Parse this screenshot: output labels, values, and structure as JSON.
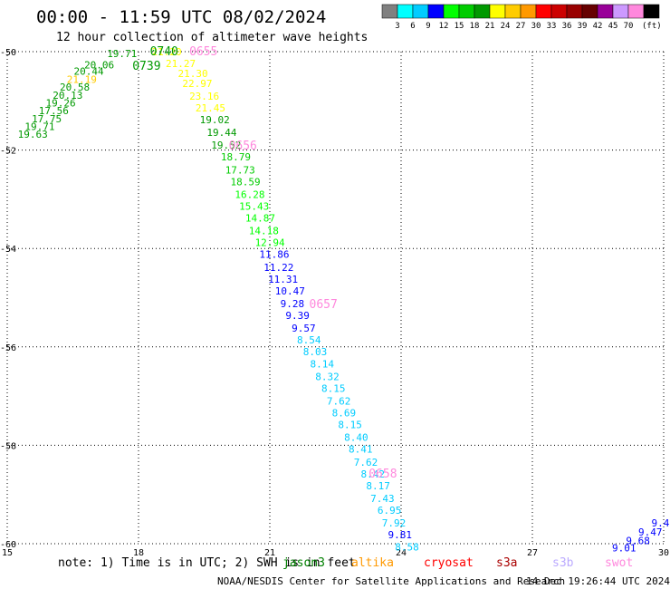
{
  "title": "00:00 - 11:59 UTC 08/02/2024",
  "subtitle": "12 hour collection of altimeter wave heights",
  "footer_left": "NOAA/NESDIS Center for Satellite Applications and Research",
  "footer_right": "14 Dec 19:26:44 UTC 2024",
  "note": "note: 1) Time is in UTC; 2) SWH is in feet",
  "satellites": [
    {
      "name": "jason3",
      "color": "#008000"
    },
    {
      "name": "altika",
      "color": "#ff9900"
    },
    {
      "name": "cryosat",
      "color": "#ff0000"
    },
    {
      "name": "s3a",
      "color": "#aa0000"
    },
    {
      "name": "s3b",
      "color": "#bbaaff"
    },
    {
      "name": "swot",
      "color": "#ff88dd"
    }
  ],
  "colorbar": {
    "unit": "(ft)",
    "colors": [
      "#808080",
      "#00ffff",
      "#00ccff",
      "#0000ff",
      "#00ff00",
      "#00cc00",
      "#009900",
      "#ffff00",
      "#ffcc00",
      "#ff9900",
      "#ff0000",
      "#cc0000",
      "#990000",
      "#660000",
      "#990099",
      "#cc99ff",
      "#ff88dd",
      "#000000"
    ],
    "labels": [
      "3",
      "6",
      "9",
      "12",
      "15",
      "18",
      "21",
      "24",
      "27",
      "30",
      "33",
      "36",
      "39",
      "42",
      "45",
      "70"
    ]
  },
  "chart_data": {
    "type": "scatter",
    "xlabel": "",
    "ylabel": "",
    "xlim": [
      15,
      30
    ],
    "ylim": [
      -60,
      -50
    ],
    "x_ticks": [
      15,
      18,
      21,
      24,
      27,
      30
    ],
    "y_ticks": [
      -50,
      -52,
      -54,
      -56,
      -58,
      -60
    ],
    "grid": true,
    "points": [
      {
        "x": 15.24,
        "y": -51.68,
        "v": "19.63",
        "c": "#009900"
      },
      {
        "x": 15.4,
        "y": -51.52,
        "v": "19.71",
        "c": "#009900"
      },
      {
        "x": 15.56,
        "y": -51.36,
        "v": "17.75",
        "c": "#009900"
      },
      {
        "x": 15.72,
        "y": -51.2,
        "v": "17.56",
        "c": "#009900"
      },
      {
        "x": 15.88,
        "y": -51.04,
        "v": "19.26",
        "c": "#009900"
      },
      {
        "x": 16.04,
        "y": -50.88,
        "v": "20.13",
        "c": "#009900"
      },
      {
        "x": 16.2,
        "y": -50.72,
        "v": "20.58",
        "c": "#009900"
      },
      {
        "x": 16.36,
        "y": -50.56,
        "v": "21.19",
        "c": "#ffcc00"
      },
      {
        "x": 16.52,
        "y": -50.4,
        "v": "20.44",
        "c": "#009900"
      },
      {
        "x": 16.76,
        "y": -50.27,
        "v": "20.06",
        "c": "#009900"
      },
      {
        "x": 17.28,
        "y": -50.04,
        "v": "19.71",
        "c": "#009900"
      },
      {
        "x": 18.3,
        "y": -50.0,
        "v": "21.20",
        "c": "#ffff00"
      },
      {
        "x": 18.62,
        "y": -50.24,
        "v": "21.27",
        "c": "#ffff00"
      },
      {
        "x": 18.9,
        "y": -50.44,
        "v": "21.30",
        "c": "#ffff00"
      },
      {
        "x": 19.0,
        "y": -50.64,
        "v": "22.97",
        "c": "#ffff00"
      },
      {
        "x": 19.16,
        "y": -50.9,
        "v": "23.16",
        "c": "#ffff00"
      },
      {
        "x": 19.3,
        "y": -51.14,
        "v": "21.45",
        "c": "#ffff00"
      },
      {
        "x": 19.4,
        "y": -51.38,
        "v": "19.02",
        "c": "#009900"
      },
      {
        "x": 19.56,
        "y": -51.64,
        "v": "19.44",
        "c": "#009900"
      },
      {
        "x": 19.66,
        "y": -51.9,
        "v": "19.52",
        "c": "#009900"
      },
      {
        "x": 19.88,
        "y": -52.14,
        "v": "18.79",
        "c": "#00cc00"
      },
      {
        "x": 19.98,
        "y": -52.4,
        "v": "17.73",
        "c": "#00cc00"
      },
      {
        "x": 20.1,
        "y": -52.64,
        "v": "18.59",
        "c": "#00cc00"
      },
      {
        "x": 20.2,
        "y": -52.9,
        "v": "16.28",
        "c": "#00ff00"
      },
      {
        "x": 20.3,
        "y": -53.14,
        "v": "15.43",
        "c": "#00ff00"
      },
      {
        "x": 20.44,
        "y": -53.38,
        "v": "14.87",
        "c": "#00ff00"
      },
      {
        "x": 20.52,
        "y": -53.64,
        "v": "14.18",
        "c": "#00ff00"
      },
      {
        "x": 20.66,
        "y": -53.88,
        "v": "12.94",
        "c": "#00ff00"
      },
      {
        "x": 20.76,
        "y": -54.12,
        "v": "11.86",
        "c": "#0000ff"
      },
      {
        "x": 20.86,
        "y": -54.38,
        "v": "11.22",
        "c": "#0000ff"
      },
      {
        "x": 20.96,
        "y": -54.62,
        "v": "11.31",
        "c": "#0000ff"
      },
      {
        "x": 21.12,
        "y": -54.86,
        "v": "10.47",
        "c": "#0000ff"
      },
      {
        "x": 21.24,
        "y": -55.12,
        "v": "9.28",
        "c": "#0000ff"
      },
      {
        "x": 21.36,
        "y": -55.36,
        "v": "9.39",
        "c": "#0000ff"
      },
      {
        "x": 21.5,
        "y": -55.62,
        "v": "9.57",
        "c": "#0000ff"
      },
      {
        "x": 21.62,
        "y": -55.86,
        "v": "8.54",
        "c": "#00ccff"
      },
      {
        "x": 21.76,
        "y": -56.1,
        "v": "8.03",
        "c": "#00ccff"
      },
      {
        "x": 21.92,
        "y": -56.34,
        "v": "8.14",
        "c": "#00ccff"
      },
      {
        "x": 22.04,
        "y": -56.6,
        "v": "8.32",
        "c": "#00ccff"
      },
      {
        "x": 22.18,
        "y": -56.84,
        "v": "8.15",
        "c": "#00ccff"
      },
      {
        "x": 22.3,
        "y": -57.1,
        "v": "7.62",
        "c": "#00ccff"
      },
      {
        "x": 22.42,
        "y": -57.34,
        "v": "8.69",
        "c": "#00ccff"
      },
      {
        "x": 22.56,
        "y": -57.58,
        "v": "8.15",
        "c": "#00ccff"
      },
      {
        "x": 22.7,
        "y": -57.84,
        "v": "8.40",
        "c": "#00ccff"
      },
      {
        "x": 22.8,
        "y": -58.08,
        "v": "8.41",
        "c": "#00ccff"
      },
      {
        "x": 22.92,
        "y": -58.34,
        "v": "7.62",
        "c": "#00ccff"
      },
      {
        "x": 23.08,
        "y": -58.58,
        "v": "8.42",
        "c": "#00ccff"
      },
      {
        "x": 23.2,
        "y": -58.82,
        "v": "8.17",
        "c": "#00ccff"
      },
      {
        "x": 23.3,
        "y": -59.08,
        "v": "7.43",
        "c": "#00ccff"
      },
      {
        "x": 23.46,
        "y": -59.32,
        "v": "6.95",
        "c": "#00ccff"
      },
      {
        "x": 23.56,
        "y": -59.58,
        "v": "7.92",
        "c": "#00ccff"
      },
      {
        "x": 23.7,
        "y": -59.82,
        "v": "9.81",
        "c": "#0000ff"
      },
      {
        "x": 23.86,
        "y": -60.06,
        "v": "8.58",
        "c": "#00ccff"
      },
      {
        "x": 28.82,
        "y": -60.08,
        "v": "9.01",
        "c": "#0000ff"
      },
      {
        "x": 29.14,
        "y": -59.94,
        "v": "9.68",
        "c": "#0000ff"
      },
      {
        "x": 29.42,
        "y": -59.76,
        "v": "9.47",
        "c": "#0000ff"
      },
      {
        "x": 29.72,
        "y": -59.58,
        "v": "9.4",
        "c": "#0000ff"
      }
    ],
    "time_labels": [
      {
        "x": 17.86,
        "y": -50.28,
        "t": "0739",
        "c": "#009900"
      },
      {
        "x": 18.26,
        "y": -49.98,
        "t": "0740",
        "c": "#009900"
      },
      {
        "x": 19.16,
        "y": -49.98,
        "t": "0655",
        "c": "#ff88dd"
      },
      {
        "x": 20.06,
        "y": -51.9,
        "t": "0656",
        "c": "#ff88dd"
      },
      {
        "x": 21.9,
        "y": -55.12,
        "t": "0657",
        "c": "#ff88dd"
      },
      {
        "x": 23.26,
        "y": -58.56,
        "t": "0658",
        "c": "#ff88dd"
      }
    ]
  }
}
